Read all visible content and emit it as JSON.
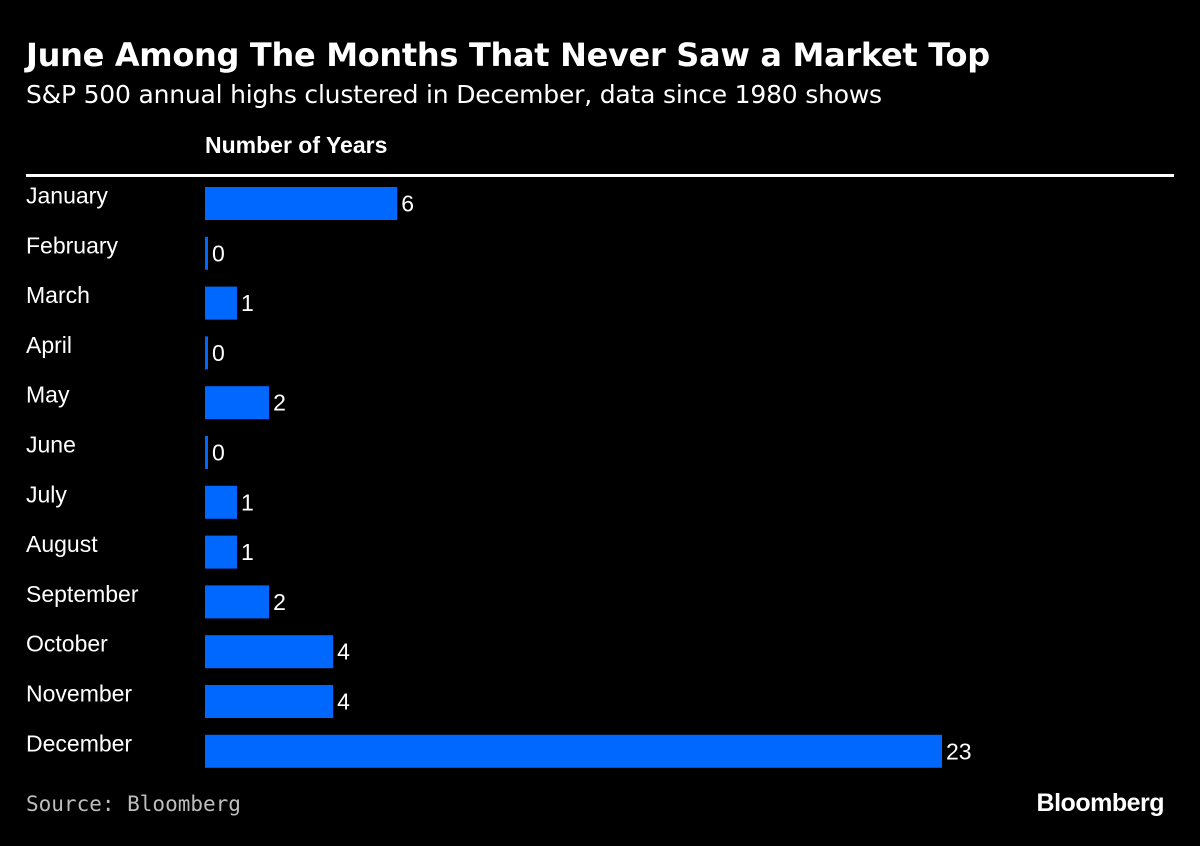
{
  "header": {
    "title": "June Among The Months That Never Saw a Market Top",
    "subtitle": "S&P 500 annual highs clustered in December, data since 1980 shows",
    "column_header": "Number of Years"
  },
  "footer": {
    "source": "Source: Bloomberg",
    "brand": "Bloomberg"
  },
  "chart_data": {
    "type": "bar",
    "orientation": "horizontal",
    "categories": [
      "January",
      "February",
      "March",
      "April",
      "May",
      "June",
      "July",
      "August",
      "September",
      "October",
      "November",
      "December"
    ],
    "values": [
      6,
      0,
      1,
      0,
      2,
      0,
      1,
      1,
      2,
      4,
      4,
      23
    ],
    "xlabel": "Number of Years",
    "xlim": [
      0,
      23
    ],
    "grid": false,
    "data_labels": true,
    "bar_color": "#0068ff"
  }
}
